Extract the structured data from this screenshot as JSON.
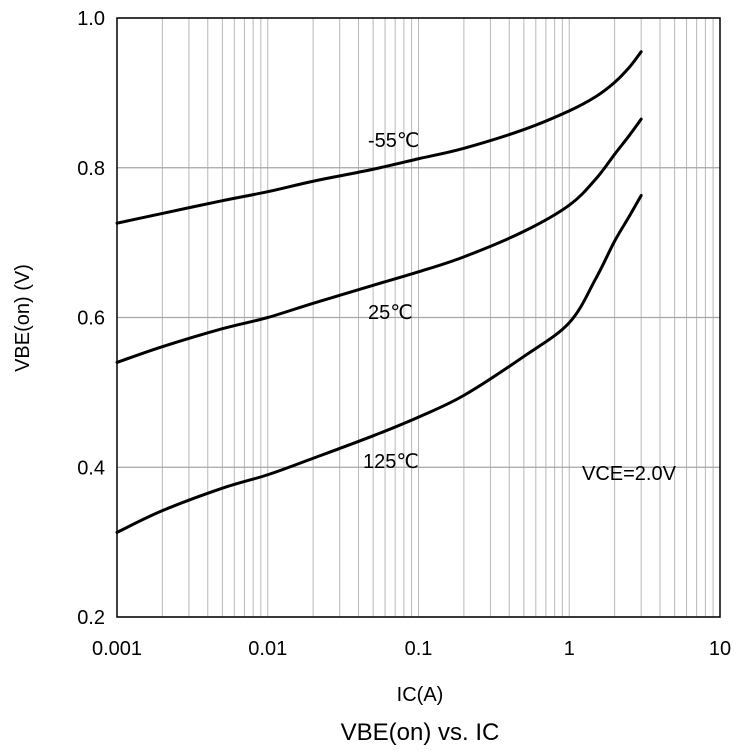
{
  "chart_data": {
    "type": "line",
    "title": "VBE(on) vs. IC",
    "xlabel": "IC(A)",
    "ylabel": "VBE(on) (V)",
    "xscale": "log",
    "xlim": [
      0.001,
      10
    ],
    "ylim": [
      0.2,
      1.0
    ],
    "x_ticks": [
      "0.001",
      "0.01",
      "0.1",
      "1",
      "10"
    ],
    "y_ticks": [
      "0.2",
      "0.4",
      "0.6",
      "0.8",
      "1.0"
    ],
    "grid": true,
    "annotation": "VCE=2.0V",
    "series": [
      {
        "name": "-55℃",
        "x": [
          0.001,
          0.002,
          0.005,
          0.01,
          0.02,
          0.05,
          0.1,
          0.2,
          0.5,
          1,
          1.5,
          2,
          2.5,
          3
        ],
        "y": [
          0.726,
          0.739,
          0.756,
          0.768,
          0.782,
          0.798,
          0.812,
          0.826,
          0.851,
          0.876,
          0.895,
          0.914,
          0.934,
          0.955
        ]
      },
      {
        "name": "25℃",
        "x": [
          0.001,
          0.002,
          0.005,
          0.01,
          0.02,
          0.05,
          0.1,
          0.2,
          0.5,
          1,
          1.5,
          2,
          2.5,
          3
        ],
        "y": [
          0.54,
          0.561,
          0.585,
          0.6,
          0.619,
          0.643,
          0.661,
          0.681,
          0.715,
          0.75,
          0.785,
          0.818,
          0.843,
          0.865
        ]
      },
      {
        "name": "125℃",
        "x": [
          0.001,
          0.002,
          0.005,
          0.01,
          0.02,
          0.05,
          0.1,
          0.2,
          0.5,
          1,
          1.5,
          2,
          2.5,
          3
        ],
        "y": [
          0.313,
          0.342,
          0.372,
          0.39,
          0.412,
          0.442,
          0.467,
          0.496,
          0.548,
          0.593,
          0.652,
          0.702,
          0.735,
          0.763
        ]
      }
    ]
  }
}
